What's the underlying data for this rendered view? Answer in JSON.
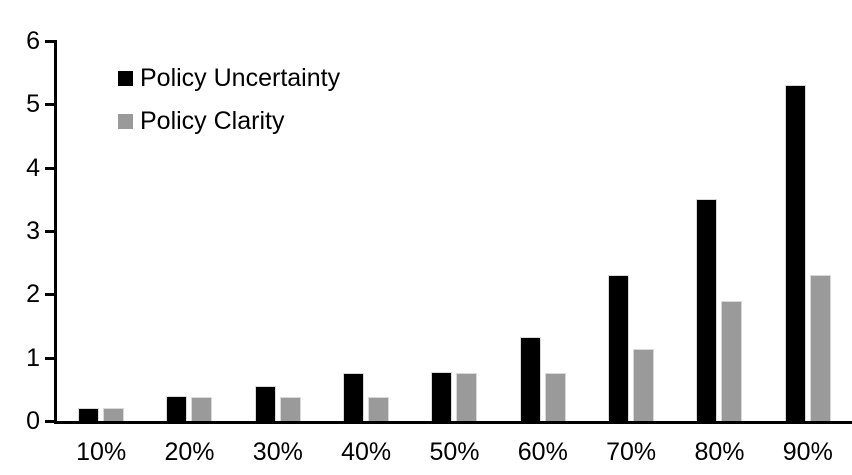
{
  "chart_data": {
    "type": "bar",
    "title": "",
    "categories": [
      "10%",
      "20%",
      "30%",
      "40%",
      "50%",
      "60%",
      "70%",
      "80%",
      "90%"
    ],
    "series": [
      {
        "name": "Policy Uncertainty",
        "color": "#000000",
        "values": [
          0.2,
          0.4,
          0.55,
          0.76,
          0.77,
          1.32,
          2.3,
          3.5,
          5.3
        ]
      },
      {
        "name": "Policy Clarity",
        "color": "#9a9a9a",
        "values": [
          0.2,
          0.38,
          0.38,
          0.38,
          0.76,
          0.76,
          1.13,
          1.9,
          2.3
        ]
      }
    ],
    "xlabel": "",
    "ylabel": "",
    "ylim": [
      0,
      6
    ],
    "yticks": [
      0,
      1,
      2,
      3,
      4,
      5,
      6
    ],
    "grid": "off",
    "legend_position": "inside-top-left",
    "axis_color": "#000000",
    "bar_edge_color": "#d9d9d9",
    "background_color": "#ffffff"
  }
}
